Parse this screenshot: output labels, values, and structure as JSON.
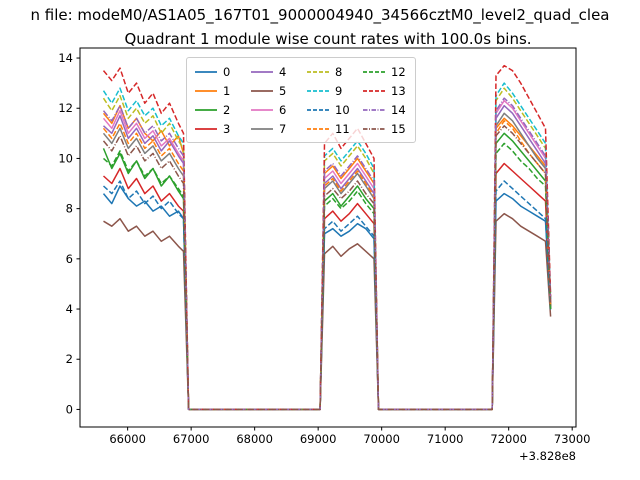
{
  "header": {
    "suptitle": "n file: modeM0/AS1A05_167T01_9000004940_34566cztM0_level2_quad_clea"
  },
  "chart_data": {
    "type": "line",
    "title": "Quadrant 1 module wise count rates with 100.0s bins.",
    "x_offset_label": "+3.828e8",
    "xlabel": "",
    "ylabel": "",
    "xlim": [
      65250,
      73060
    ],
    "ylim": [
      -0.7,
      14.4
    ],
    "xticks": [
      66000,
      67000,
      68000,
      69000,
      70000,
      71000,
      72000,
      73000
    ],
    "yticks": [
      0,
      2,
      4,
      6,
      8,
      10,
      12,
      14
    ],
    "legend_position": "upper center",
    "legend_columns": 4,
    "x_bump1": [
      65620,
      65750,
      65880,
      66010,
      66140,
      66270,
      66400,
      66530,
      66660,
      66800,
      66880
    ],
    "gap1_x": [
      66960,
      69030
    ],
    "x_bump2": [
      69100,
      69230,
      69360,
      69490,
      69620,
      69750,
      69880
    ],
    "gap2_x": [
      69950,
      71740
    ],
    "x_bump3": [
      71800,
      71930,
      72060,
      72190,
      72320,
      72450,
      72580,
      72660
    ],
    "series": [
      {
        "label": "0",
        "color": "#1f77b4",
        "dash": "solid",
        "b1": [
          8.6,
          8.2,
          8.9,
          8.4,
          8.1,
          8.3,
          7.9,
          8.1,
          7.7,
          7.9,
          7.6
        ],
        "b2": [
          7.0,
          7.2,
          6.9,
          7.1,
          7.4,
          7.2,
          6.8
        ],
        "b3": [
          8.3,
          8.6,
          8.4,
          8.1,
          7.9,
          7.7,
          7.5,
          4.0
        ]
      },
      {
        "label": "1",
        "color": "#ff7f0e",
        "dash": "solid",
        "b1": [
          11.8,
          11.4,
          12.1,
          11.2,
          11.6,
          11.0,
          10.7,
          11.1,
          10.5,
          10.9,
          10.2
        ],
        "b2": [
          9.4,
          9.7,
          9.2,
          9.6,
          10.0,
          9.5,
          9.0
        ],
        "b3": [
          11.2,
          11.6,
          11.3,
          10.9,
          10.5,
          10.1,
          9.7,
          4.2
        ]
      },
      {
        "label": "2",
        "color": "#2ca02c",
        "dash": "solid",
        "b1": [
          10.4,
          9.6,
          10.2,
          9.4,
          9.9,
          9.2,
          9.6,
          8.9,
          9.3,
          8.7,
          8.4
        ],
        "b2": [
          8.3,
          8.6,
          8.1,
          8.5,
          8.9,
          8.4,
          8.0
        ],
        "b3": [
          10.6,
          11.0,
          10.7,
          10.3,
          9.9,
          9.5,
          9.1,
          4.1
        ]
      },
      {
        "label": "3",
        "color": "#d62728",
        "dash": "solid",
        "b1": [
          9.3,
          9.0,
          9.6,
          8.8,
          9.2,
          8.6,
          8.9,
          8.3,
          8.6,
          8.1,
          7.9
        ],
        "b2": [
          7.6,
          7.9,
          7.5,
          7.8,
          8.2,
          7.8,
          7.4
        ],
        "b3": [
          9.4,
          9.8,
          9.5,
          9.2,
          8.9,
          8.6,
          8.3,
          4.0
        ]
      },
      {
        "label": "4",
        "color": "#9467bd",
        "dash": "solid",
        "b1": [
          11.3,
          11.0,
          11.7,
          10.8,
          11.2,
          10.6,
          10.9,
          10.3,
          10.7,
          10.1,
          9.8
        ],
        "b2": [
          9.0,
          9.3,
          8.8,
          9.2,
          9.6,
          9.1,
          8.6
        ],
        "b3": [
          11.6,
          12.1,
          11.8,
          11.3,
          10.8,
          10.3,
          9.8,
          4.2
        ]
      },
      {
        "label": "5",
        "color": "#8c564b",
        "dash": "solid",
        "b1": [
          7.5,
          7.3,
          7.6,
          7.1,
          7.3,
          6.9,
          7.1,
          6.7,
          6.9,
          6.5,
          6.3
        ],
        "b2": [
          6.2,
          6.5,
          6.1,
          6.4,
          6.6,
          6.3,
          6.0
        ],
        "b3": [
          7.5,
          7.8,
          7.6,
          7.3,
          7.1,
          6.9,
          6.7,
          3.7
        ]
      },
      {
        "label": "6",
        "color": "#e377c2",
        "dash": "solid",
        "b1": [
          11.6,
          11.2,
          11.9,
          11.0,
          11.4,
          10.8,
          11.1,
          10.5,
          10.8,
          10.2,
          9.9
        ],
        "b2": [
          9.2,
          9.5,
          9.0,
          9.4,
          9.8,
          9.3,
          8.8
        ],
        "b3": [
          11.8,
          12.3,
          12.0,
          11.5,
          11.0,
          10.5,
          10.0,
          4.3
        ]
      },
      {
        "label": "7",
        "color": "#7f7f7f",
        "dash": "solid",
        "b1": [
          11.0,
          10.6,
          11.2,
          10.4,
          10.8,
          10.2,
          10.5,
          9.9,
          10.2,
          9.6,
          9.3
        ],
        "b2": [
          8.8,
          9.1,
          8.6,
          9.0,
          9.4,
          8.9,
          8.4
        ],
        "b3": [
          11.3,
          11.8,
          11.5,
          11.0,
          10.5,
          10.0,
          9.6,
          4.1
        ]
      },
      {
        "label": "8",
        "color": "#bcbd22",
        "dash": "dashed",
        "b1": [
          12.4,
          11.9,
          12.5,
          11.6,
          12.0,
          11.4,
          11.7,
          11.0,
          11.4,
          10.7,
          10.4
        ],
        "b2": [
          9.9,
          10.2,
          9.7,
          10.1,
          10.5,
          10.0,
          9.4
        ],
        "b3": [
          12.3,
          12.8,
          12.4,
          11.9,
          11.4,
          10.9,
          10.4,
          4.4
        ]
      },
      {
        "label": "9",
        "color": "#17becf",
        "dash": "dashed",
        "b1": [
          12.7,
          12.2,
          12.8,
          11.9,
          12.3,
          11.7,
          12.0,
          11.3,
          11.6,
          10.9,
          10.6
        ],
        "b2": [
          10.1,
          10.4,
          9.9,
          10.3,
          10.7,
          10.2,
          9.6
        ],
        "b3": [
          12.5,
          13.0,
          12.6,
          12.1,
          11.6,
          11.1,
          10.6,
          4.4
        ]
      },
      {
        "label": "10",
        "color": "#1f77b4",
        "dash": "dashed",
        "b1": [
          8.9,
          8.6,
          9.1,
          8.4,
          8.7,
          8.2,
          8.5,
          8.0,
          8.3,
          7.8,
          7.6
        ],
        "b2": [
          7.2,
          7.5,
          7.1,
          7.4,
          7.7,
          7.3,
          6.9
        ],
        "b3": [
          8.7,
          9.1,
          8.8,
          8.5,
          8.2,
          7.9,
          7.6,
          3.9
        ]
      },
      {
        "label": "11",
        "color": "#ff7f0e",
        "dash": "dashed",
        "b1": [
          11.2,
          10.8,
          11.4,
          10.6,
          11.0,
          10.4,
          10.7,
          10.1,
          10.4,
          9.8,
          9.5
        ],
        "b2": [
          8.9,
          9.2,
          8.7,
          9.1,
          9.5,
          9.0,
          8.5
        ],
        "b3": [
          11.0,
          11.5,
          11.2,
          10.7,
          10.2,
          9.8,
          9.4,
          4.1
        ]
      },
      {
        "label": "12",
        "color": "#2ca02c",
        "dash": "dashed",
        "b1": [
          10.0,
          9.7,
          10.3,
          9.5,
          9.9,
          9.3,
          9.6,
          9.0,
          9.3,
          8.8,
          8.5
        ],
        "b2": [
          8.1,
          8.4,
          8.0,
          8.3,
          8.7,
          8.2,
          7.8
        ],
        "b3": [
          10.2,
          10.6,
          10.3,
          9.9,
          9.6,
          9.2,
          8.9,
          4.0
        ]
      },
      {
        "label": "13",
        "color": "#d62728",
        "dash": "dashed",
        "b1": [
          13.5,
          13.1,
          13.6,
          12.6,
          13.0,
          12.2,
          12.6,
          11.8,
          12.2,
          11.4,
          11.0
        ],
        "b2": [
          10.6,
          11.0,
          10.4,
          10.8,
          11.2,
          10.6,
          10.0
        ],
        "b3": [
          13.3,
          13.7,
          13.5,
          13.0,
          12.4,
          11.8,
          11.2,
          4.5
        ]
      },
      {
        "label": "14",
        "color": "#9467bd",
        "dash": "dashdot",
        "b1": [
          11.9,
          11.5,
          12.1,
          11.2,
          11.6,
          11.0,
          11.3,
          10.7,
          11.0,
          10.4,
          10.1
        ],
        "b2": [
          9.5,
          9.8,
          9.3,
          9.7,
          10.1,
          9.6,
          9.1
        ],
        "b3": [
          11.9,
          12.4,
          12.1,
          11.6,
          11.1,
          10.6,
          10.1,
          4.2
        ]
      },
      {
        "label": "15",
        "color": "#8c564b",
        "dash": "dashdot",
        "b1": [
          10.7,
          10.3,
          10.9,
          10.1,
          10.5,
          9.9,
          10.2,
          9.6,
          9.9,
          9.3,
          9.0
        ],
        "b2": [
          8.5,
          8.8,
          8.4,
          8.7,
          9.1,
          8.6,
          8.2
        ],
        "b3": [
          10.9,
          11.3,
          11.0,
          10.6,
          10.2,
          9.8,
          9.4,
          4.1
        ]
      }
    ]
  }
}
